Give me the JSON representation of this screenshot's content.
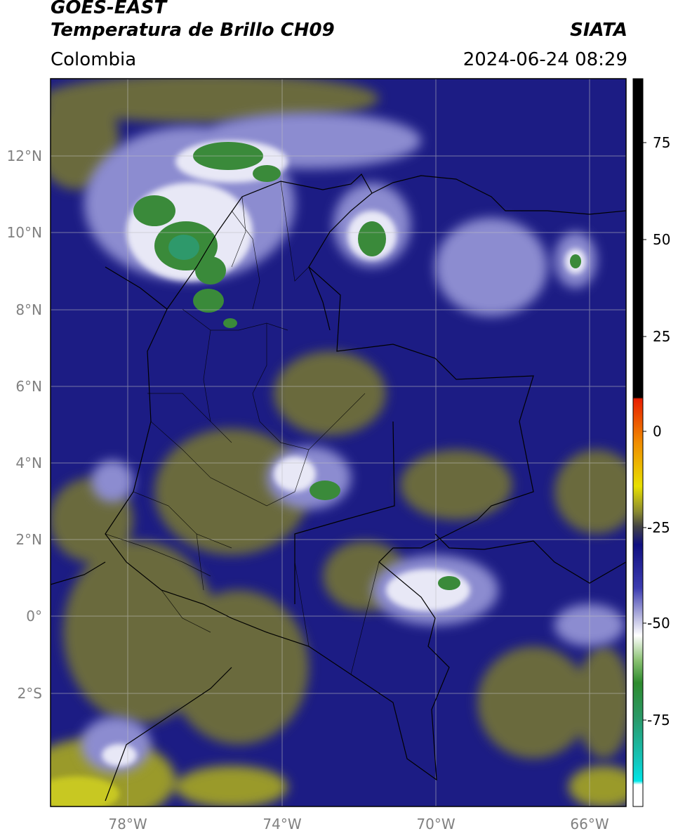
{
  "header": {
    "satellite": "GOES-EAST",
    "product": "Temperatura de Brillo CH09",
    "agency": "SIATA",
    "region": "Colombia",
    "datetime": "2024-06-24 08:29"
  },
  "map": {
    "lat_labels": [
      "12°N",
      "10°N",
      "8°N",
      "6°N",
      "4°N",
      "2°N",
      "0°",
      "2°S"
    ],
    "lon_labels": [
      "78°W",
      "74°W",
      "70°W",
      "66°W"
    ]
  },
  "colorbar": {
    "tick_labels": [
      "75",
      "50",
      "25",
      "0",
      "-25",
      "-50",
      "-75"
    ],
    "colors": {
      "saturated": "#000000",
      "warm_red": "#e81e00",
      "orange": "#f08c00",
      "yellow": "#e8e000",
      "olive": "#6e6e3c",
      "navy": "#0c0c7a",
      "white": "#ffffff",
      "green": "#2e8b2e",
      "teal": "#12c8c0",
      "cyan": "#00e6e6"
    }
  }
}
